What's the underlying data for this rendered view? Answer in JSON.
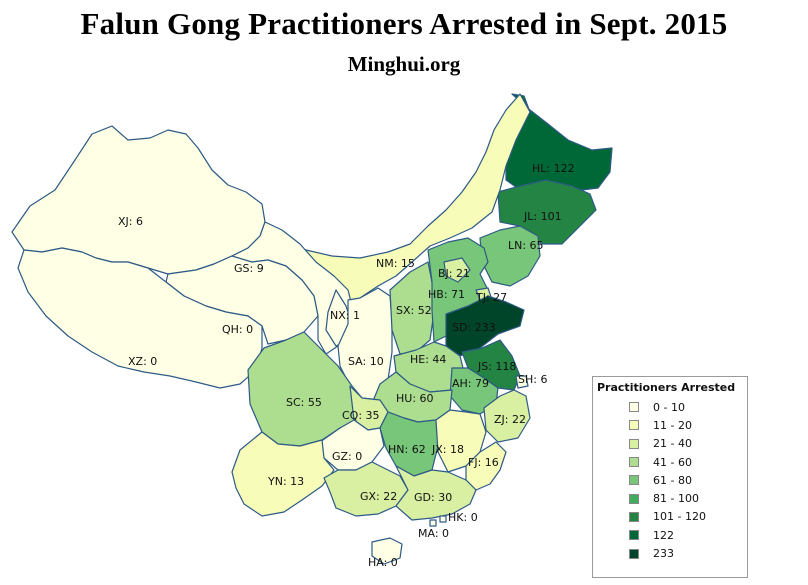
{
  "title": "Falun Gong Practitioners Arrested in Sept. 2015",
  "subtitle": "Minghui.org",
  "legend": {
    "title": "Practitioners Arrested",
    "items": [
      {
        "label": "0 - 10",
        "color": "#ffffe5"
      },
      {
        "label": "11 - 20",
        "color": "#f7fcb9"
      },
      {
        "label": "21 - 40",
        "color": "#d9f0a3"
      },
      {
        "label": "41 - 60",
        "color": "#addd8e"
      },
      {
        "label": "61 - 80",
        "color": "#78c679"
      },
      {
        "label": "81 - 100",
        "color": "#41ab5d"
      },
      {
        "label": "101 - 120",
        "color": "#238443"
      },
      {
        "label": "122",
        "color": "#006837"
      },
      {
        "label": "233",
        "color": "#004529"
      }
    ]
  },
  "regions": [
    {
      "code": "HL",
      "label": "HL: 122",
      "value": 122
    },
    {
      "code": "JL",
      "label": "JL: 101",
      "value": 101
    },
    {
      "code": "LN",
      "label": "LN: 65",
      "value": 65
    },
    {
      "code": "NM",
      "label": "NM: 15",
      "value": 15
    },
    {
      "code": "XJ",
      "label": "XJ: 6",
      "value": 6
    },
    {
      "code": "GS",
      "label": "GS: 9",
      "value": 9
    },
    {
      "code": "QH",
      "label": "QH: 0",
      "value": 0
    },
    {
      "code": "XZ",
      "label": "XZ: 0",
      "value": 0
    },
    {
      "code": "NX",
      "label": "NX: 1",
      "value": 1
    },
    {
      "code": "SA",
      "label": "SA: 10",
      "value": 10
    },
    {
      "code": "SX",
      "label": "SX: 52",
      "value": 52
    },
    {
      "code": "HB",
      "label": "HB: 71",
      "value": 71
    },
    {
      "code": "BJ",
      "label": "BJ: 21",
      "value": 21
    },
    {
      "code": "TJ",
      "label": "TJ: 27",
      "value": 27
    },
    {
      "code": "SD",
      "label": "SD: 233",
      "value": 233
    },
    {
      "code": "HE",
      "label": "HE: 44",
      "value": 44
    },
    {
      "code": "JS",
      "label": "JS: 118",
      "value": 118
    },
    {
      "code": "AH",
      "label": "AH: 79",
      "value": 79
    },
    {
      "code": "SH",
      "label": "SH: 6",
      "value": 6
    },
    {
      "code": "ZJ",
      "label": "ZJ: 22",
      "value": 22
    },
    {
      "code": "HU",
      "label": "HU: 60",
      "value": 60
    },
    {
      "code": "SC",
      "label": "SC: 55",
      "value": 55
    },
    {
      "code": "CQ",
      "label": "CQ: 35",
      "value": 35
    },
    {
      "code": "HN",
      "label": "HN: 62",
      "value": 62
    },
    {
      "code": "JX",
      "label": "JX: 18",
      "value": 18
    },
    {
      "code": "FJ",
      "label": "FJ: 16",
      "value": 16
    },
    {
      "code": "GZ",
      "label": "GZ: 0",
      "value": 0
    },
    {
      "code": "YN",
      "label": "YN: 13",
      "value": 13
    },
    {
      "code": "GX",
      "label": "GX: 22",
      "value": 22
    },
    {
      "code": "GD",
      "label": "GD: 30",
      "value": 30
    },
    {
      "code": "HK",
      "label": "HK: 0",
      "value": 0
    },
    {
      "code": "MA",
      "label": "MA: 0",
      "value": 0
    },
    {
      "code": "HA",
      "label": "HA: 0",
      "value": 0
    }
  ]
}
